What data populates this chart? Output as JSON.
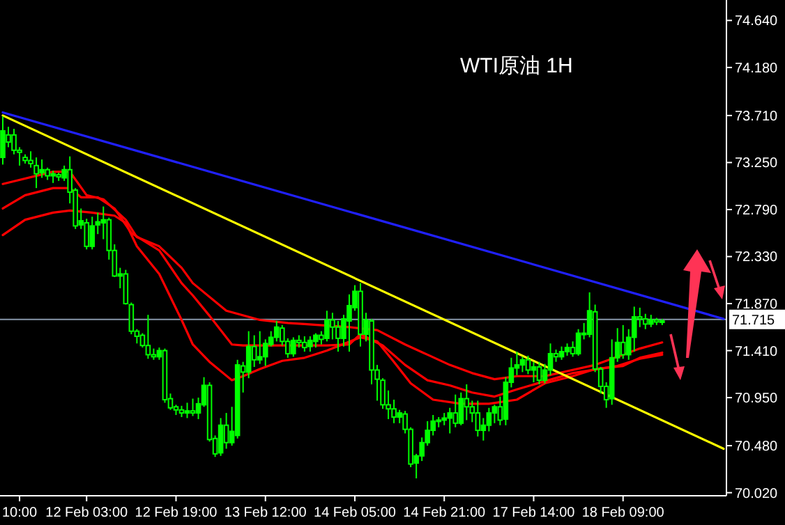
{
  "chart_data": {
    "type": "candlestick",
    "title": "WTI原油 1H",
    "color": "#00ff00",
    "categories": [
      null,
      null,
      null,
      "10:00",
      null,
      null,
      null,
      null,
      null,
      null,
      null,
      null,
      null,
      null,
      null,
      "12 Feb 03:00",
      null,
      null,
      null,
      null,
      null,
      null,
      null,
      null,
      null,
      null,
      null,
      null,
      null,
      null,
      null,
      "12 Feb 19:00",
      null,
      null,
      null,
      null,
      null,
      null,
      null,
      null,
      null,
      null,
      null,
      null,
      null,
      null,
      null,
      "13 Feb 12:00",
      null,
      null,
      null,
      null,
      null,
      null,
      null,
      null,
      null,
      null,
      null,
      null,
      null,
      null,
      null,
      "14 Feb 05:00",
      null,
      null,
      null,
      null,
      null,
      null,
      null,
      null,
      null,
      null,
      null,
      null,
      null,
      null,
      null,
      "14 Feb 21:00",
      null,
      null,
      null,
      null,
      null,
      null,
      null,
      null,
      null,
      null,
      null,
      null,
      null,
      null,
      null,
      "17 Feb 14:00",
      null,
      null,
      null,
      null,
      null,
      null,
      null,
      null,
      null,
      null,
      null,
      null,
      null,
      null,
      null,
      "18 Feb 09:00",
      null,
      null,
      null,
      null,
      null,
      null,
      null,
      null,
      null,
      null,
      null,
      null,
      null,
      null,
      null,
      null,
      null,
      null
    ],
    "ohlc": [
      [
        73.3,
        73.7,
        73.23,
        73.56
      ],
      [
        73.52,
        73.6,
        73.4,
        73.45
      ],
      [
        73.52,
        73.58,
        73.33,
        73.37
      ],
      [
        73.37,
        73.4,
        73.22,
        73.35
      ],
      [
        73.3,
        73.33,
        73.24,
        73.27
      ],
      [
        73.27,
        73.36,
        73.2,
        73.24
      ],
      [
        73.22,
        73.3,
        73.0,
        73.14
      ],
      [
        73.15,
        73.28,
        73.1,
        73.18
      ],
      [
        73.18,
        73.2,
        73.08,
        73.12
      ],
      [
        73.12,
        73.17,
        73.05,
        73.14
      ],
      [
        73.13,
        73.15,
        73.07,
        73.11
      ],
      [
        73.1,
        73.22,
        73.07,
        73.18
      ],
      [
        73.18,
        73.31,
        72.85,
        72.96
      ],
      [
        72.98,
        73.0,
        72.6,
        72.63
      ],
      [
        72.64,
        72.8,
        72.6,
        72.68
      ],
      [
        72.66,
        72.7,
        72.4,
        72.43
      ],
      [
        72.43,
        72.72,
        72.4,
        72.63
      ],
      [
        72.64,
        72.76,
        72.55,
        72.67
      ],
      [
        72.66,
        72.82,
        72.5,
        72.69
      ],
      [
        72.69,
        72.71,
        72.3,
        72.39
      ],
      [
        72.39,
        72.45,
        72.13,
        72.14
      ],
      [
        72.14,
        72.22,
        72.02,
        72.16
      ],
      [
        72.16,
        72.2,
        71.86,
        71.87
      ],
      [
        71.86,
        71.88,
        71.57,
        71.6
      ],
      [
        71.6,
        71.62,
        71.48,
        71.55
      ],
      [
        71.56,
        71.58,
        71.44,
        71.46
      ],
      [
        71.46,
        71.76,
        71.33,
        71.37
      ],
      [
        71.37,
        71.43,
        71.32,
        71.35
      ],
      [
        71.35,
        71.44,
        71.32,
        71.41
      ],
      [
        71.41,
        71.43,
        70.9,
        70.93
      ],
      [
        70.94,
        70.99,
        70.83,
        70.85
      ],
      [
        70.86,
        70.88,
        70.78,
        70.83
      ],
      [
        70.83,
        70.87,
        70.76,
        70.8
      ],
      [
        70.8,
        70.9,
        70.75,
        70.82
      ],
      [
        70.82,
        70.94,
        70.77,
        70.8
      ],
      [
        70.8,
        70.95,
        70.74,
        70.89
      ],
      [
        70.88,
        71.15,
        70.86,
        71.07
      ],
      [
        71.07,
        71.1,
        70.52,
        70.54
      ],
      [
        70.55,
        70.58,
        70.37,
        70.4
      ],
      [
        70.41,
        70.75,
        70.38,
        70.68
      ],
      [
        70.68,
        70.8,
        70.45,
        70.51
      ],
      [
        70.51,
        70.86,
        70.48,
        70.62
      ],
      [
        70.58,
        71.32,
        70.55,
        71.27
      ],
      [
        71.26,
        71.3,
        71.0,
        71.2
      ],
      [
        71.2,
        71.6,
        71.14,
        71.45
      ],
      [
        71.45,
        71.56,
        71.25,
        71.32
      ],
      [
        71.32,
        71.6,
        71.28,
        71.35
      ],
      [
        71.35,
        71.52,
        71.26,
        71.48
      ],
      [
        71.47,
        71.6,
        71.45,
        71.54
      ],
      [
        71.54,
        71.7,
        71.5,
        71.64
      ],
      [
        71.63,
        71.66,
        71.46,
        71.5
      ],
      [
        71.5,
        71.53,
        71.34,
        71.38
      ],
      [
        71.38,
        71.54,
        71.35,
        71.51
      ],
      [
        71.51,
        71.56,
        71.44,
        71.49
      ],
      [
        71.49,
        71.55,
        71.4,
        71.44
      ],
      [
        71.45,
        71.55,
        71.4,
        71.51
      ],
      [
        71.5,
        71.58,
        71.44,
        71.56
      ],
      [
        71.56,
        71.6,
        71.47,
        71.52
      ],
      [
        71.53,
        71.8,
        71.5,
        71.71
      ],
      [
        71.71,
        71.78,
        71.52,
        71.64
      ],
      [
        71.64,
        71.7,
        71.4,
        71.53
      ],
      [
        71.53,
        71.76,
        71.45,
        71.72
      ],
      [
        71.7,
        71.96,
        71.4,
        71.85
      ],
      [
        71.83,
        72.05,
        71.8,
        71.99
      ],
      [
        71.99,
        72.07,
        71.45,
        71.57
      ],
      [
        71.57,
        71.78,
        71.5,
        71.71
      ],
      [
        71.7,
        71.72,
        71.08,
        71.22
      ],
      [
        71.22,
        71.27,
        70.92,
        71.13
      ],
      [
        71.12,
        71.14,
        70.84,
        70.88
      ],
      [
        70.88,
        71.02,
        70.74,
        70.84
      ],
      [
        70.84,
        70.93,
        70.7,
        70.76
      ],
      [
        70.76,
        70.83,
        70.7,
        70.8
      ],
      [
        70.79,
        70.82,
        70.6,
        70.64
      ],
      [
        70.64,
        70.66,
        70.27,
        70.3
      ],
      [
        70.31,
        70.4,
        70.16,
        70.38
      ],
      [
        70.38,
        70.56,
        70.33,
        70.51
      ],
      [
        70.51,
        70.72,
        70.48,
        70.63
      ],
      [
        70.63,
        70.78,
        70.58,
        70.72
      ],
      [
        70.72,
        70.76,
        70.66,
        70.73
      ],
      [
        70.73,
        70.8,
        70.68,
        70.75
      ],
      [
        70.75,
        70.85,
        70.6,
        70.8
      ],
      [
        70.8,
        70.98,
        70.66,
        70.7
      ],
      [
        70.7,
        71.0,
        70.68,
        70.94
      ],
      [
        70.94,
        71.08,
        70.73,
        70.86
      ],
      [
        70.86,
        70.92,
        70.71,
        70.8
      ],
      [
        70.8,
        70.92,
        70.57,
        70.63
      ],
      [
        70.63,
        70.75,
        70.53,
        70.68
      ],
      [
        70.68,
        70.85,
        70.62,
        70.8
      ],
      [
        70.8,
        70.88,
        70.7,
        70.86
      ],
      [
        70.86,
        70.96,
        70.68,
        70.73
      ],
      [
        70.74,
        71.15,
        70.68,
        71.1
      ],
      [
        71.1,
        71.34,
        71.05,
        71.24
      ],
      [
        71.24,
        71.4,
        71.17,
        71.27
      ],
      [
        71.27,
        71.35,
        71.2,
        71.32
      ],
      [
        71.32,
        71.36,
        71.18,
        71.22
      ],
      [
        71.22,
        71.3,
        71.1,
        71.25
      ],
      [
        71.25,
        71.3,
        71.08,
        71.12
      ],
      [
        71.12,
        71.28,
        71.09,
        71.22
      ],
      [
        71.22,
        71.48,
        71.17,
        71.38
      ],
      [
        71.38,
        71.42,
        71.3,
        71.35
      ],
      [
        71.35,
        71.45,
        71.32,
        71.4
      ],
      [
        71.4,
        71.48,
        71.36,
        71.44
      ],
      [
        71.44,
        71.5,
        71.35,
        71.38
      ],
      [
        71.38,
        71.62,
        71.36,
        71.58
      ],
      [
        71.58,
        71.68,
        71.52,
        71.57
      ],
      [
        71.57,
        71.98,
        71.54,
        71.8
      ],
      [
        71.79,
        71.86,
        71.2,
        71.23
      ],
      [
        71.23,
        71.25,
        70.99,
        71.06
      ],
      [
        71.06,
        71.1,
        70.85,
        70.93
      ],
      [
        70.94,
        71.52,
        70.88,
        71.34
      ],
      [
        71.34,
        71.63,
        71.3,
        71.49
      ],
      [
        71.49,
        71.66,
        71.33,
        71.37
      ],
      [
        71.37,
        71.62,
        71.32,
        71.54
      ],
      [
        71.54,
        71.84,
        71.4,
        71.74
      ],
      [
        71.74,
        71.83,
        71.64,
        71.72
      ],
      [
        71.72,
        71.77,
        71.62,
        71.67
      ],
      [
        71.67,
        71.76,
        71.64,
        71.71
      ],
      [
        71.71,
        71.73,
        71.66,
        71.69
      ],
      [
        71.69,
        71.72,
        71.66,
        71.7
      ],
      null,
      null,
      null,
      null,
      null,
      null,
      null,
      null,
      null,
      null,
      null
    ],
    "series": [
      {
        "type": "line",
        "color": "#ff0000",
        "values": [
          72.54,
          null,
          null,
          null,
          72.69,
          null,
          null,
          null,
          null,
          72.76,
          null,
          null,
          72.78,
          null,
          null,
          null,
          72.76,
          null,
          null,
          null,
          72.73,
          null,
          72.66,
          null,
          72.43,
          null,
          null,
          null,
          72.16,
          null,
          null,
          null,
          71.71,
          null,
          71.47,
          null,
          null,
          71.3,
          null,
          null,
          null,
          71.12,
          null,
          71.16,
          null,
          null,
          71.23,
          null,
          null,
          null,
          71.31,
          null,
          null,
          null,
          71.34,
          null,
          null,
          null,
          71.41,
          null,
          null,
          null,
          null,
          null,
          71.54,
          null,
          null,
          71.5,
          null,
          null,
          71.3,
          null,
          null,
          71.09,
          null,
          null,
          null,
          70.93,
          null,
          null,
          null,
          null,
          70.89,
          null,
          null,
          null,
          null,
          70.89,
          null,
          null,
          null,
          null,
          70.93,
          null,
          null,
          null,
          null,
          71.09,
          null,
          null,
          null,
          null,
          71.16,
          null,
          null,
          null,
          71.23,
          null,
          null,
          null,
          null,
          71.26,
          null,
          null,
          71.34,
          null,
          null,
          null,
          71.39,
          null,
          null,
          null,
          null,
          null,
          null,
          null,
          null,
          null,
          null,
          null
        ]
      },
      {
        "type": "line",
        "color": "#ff0000",
        "values": [
          72.8,
          null,
          null,
          null,
          72.93,
          null,
          null,
          null,
          null,
          73.0,
          null,
          null,
          73.0,
          null,
          72.91,
          null,
          null,
          72.91,
          null,
          null,
          72.8,
          null,
          null,
          72.56,
          null,
          null,
          null,
          null,
          72.39,
          null,
          null,
          null,
          72.07,
          null,
          71.95,
          null,
          null,
          71.75,
          null,
          null,
          null,
          71.47,
          null,
          71.46,
          null,
          null,
          null,
          71.46,
          null,
          null,
          null,
          null,
          null,
          null,
          71.46,
          null,
          null,
          null,
          71.46,
          null,
          null,
          null,
          71.47,
          null,
          71.57,
          null,
          null,
          null,
          71.46,
          null,
          null,
          null,
          71.27,
          null,
          null,
          null,
          71.12,
          null,
          null,
          null,
          71.07,
          null,
          null,
          null,
          71.0,
          null,
          null,
          null,
          70.96,
          null,
          null,
          null,
          71.03,
          null,
          null,
          null,
          null,
          null,
          null,
          null,
          null,
          null,
          71.19,
          null,
          null,
          null,
          null,
          null,
          null,
          null,
          71.26,
          null,
          null,
          null,
          71.33,
          null,
          null,
          null,
          71.37,
          null,
          null,
          null,
          null,
          null,
          null,
          null,
          null,
          null,
          null,
          null
        ]
      },
      {
        "type": "line",
        "color": "#ff0000",
        "values": [
          73.04,
          null,
          null,
          null,
          null,
          null,
          null,
          null,
          null,
          73.16,
          null,
          null,
          73.16,
          null,
          null,
          72.93,
          null,
          null,
          72.89,
          null,
          null,
          null,
          72.69,
          null,
          72.52,
          null,
          null,
          null,
          72.43,
          null,
          null,
          null,
          72.22,
          null,
          72.07,
          null,
          null,
          null,
          null,
          null,
          71.8,
          null,
          null,
          null,
          null,
          null,
          71.71,
          null,
          null,
          null,
          null,
          71.68,
          null,
          null,
          71.67,
          null,
          null,
          null,
          null,
          null,
          null,
          null,
          71.64,
          null,
          null,
          null,
          null,
          71.61,
          null,
          null,
          null,
          null,
          71.47,
          null,
          null,
          null,
          71.37,
          null,
          null,
          null,
          71.27,
          null,
          null,
          null,
          71.19,
          null,
          null,
          null,
          71.13,
          null,
          null,
          null,
          71.16,
          null,
          null,
          null,
          null,
          71.16,
          null,
          null,
          null,
          null,
          null,
          null,
          null,
          null,
          71.27,
          null,
          null,
          null,
          null,
          null,
          null,
          null,
          71.43,
          null,
          null,
          null,
          71.49,
          null,
          null,
          null,
          null,
          null,
          null,
          null,
          null,
          null,
          null,
          null
        ]
      },
      {
        "type": "line",
        "color": "#2020ff",
        "values": [
          73.74,
          null,
          null,
          null,
          null,
          null,
          null,
          null,
          null,
          null,
          null,
          null,
          null,
          null,
          null,
          null,
          null,
          null,
          null,
          null,
          null,
          null,
          null,
          null,
          null,
          null,
          null,
          null,
          null,
          null,
          null,
          null,
          null,
          null,
          null,
          null,
          null,
          null,
          null,
          null,
          null,
          null,
          null,
          null,
          null,
          null,
          null,
          null,
          null,
          null,
          null,
          null,
          null,
          null,
          null,
          null,
          null,
          null,
          null,
          null,
          null,
          null,
          null,
          null,
          null,
          null,
          null,
          null,
          null,
          null,
          null,
          null,
          null,
          null,
          null,
          null,
          null,
          null,
          null,
          null,
          null,
          null,
          null,
          null,
          null,
          null,
          null,
          null,
          null,
          null,
          null,
          null,
          null,
          null,
          null,
          null,
          null,
          null,
          null,
          null,
          null,
          null,
          null,
          null,
          null,
          null,
          null,
          null,
          null,
          null,
          null,
          null,
          null,
          null,
          null,
          null,
          null,
          null,
          null,
          null,
          null,
          null,
          null,
          null,
          null,
          null,
          null,
          null,
          null,
          71.72
        ]
      },
      {
        "type": "line",
        "color": "#ffff00",
        "values": [
          73.71,
          null,
          null,
          null,
          null,
          null,
          null,
          null,
          null,
          null,
          null,
          null,
          null,
          null,
          null,
          null,
          null,
          null,
          null,
          null,
          null,
          null,
          null,
          null,
          null,
          null,
          null,
          null,
          null,
          null,
          null,
          null,
          null,
          null,
          null,
          null,
          null,
          null,
          null,
          null,
          null,
          null,
          null,
          null,
          null,
          null,
          null,
          null,
          null,
          null,
          null,
          null,
          null,
          null,
          null,
          null,
          null,
          null,
          null,
          null,
          null,
          null,
          null,
          null,
          null,
          null,
          null,
          null,
          null,
          null,
          null,
          null,
          null,
          null,
          null,
          null,
          null,
          null,
          null,
          null,
          null,
          null,
          null,
          null,
          null,
          null,
          null,
          null,
          null,
          null,
          null,
          null,
          null,
          null,
          null,
          null,
          null,
          null,
          null,
          null,
          null,
          null,
          null,
          null,
          null,
          null,
          null,
          null,
          null,
          null,
          null,
          null,
          null,
          null,
          null,
          null,
          null,
          null,
          null,
          null,
          null,
          null,
          null,
          null,
          null,
          null,
          null,
          null,
          null,
          70.45
        ]
      }
    ],
    "ylim": [
      69.99,
      74.84
    ],
    "yticks": [
      {
        "value": 70.02,
        "label": "70.020"
      },
      {
        "value": 70.48,
        "label": "70.480"
      },
      {
        "value": 70.95,
        "label": "70.950"
      },
      {
        "value": 71.41,
        "label": "71.410"
      },
      {
        "value": 71.87,
        "label": "71.870"
      },
      {
        "value": 72.33,
        "label": "72.330"
      },
      {
        "value": 72.79,
        "label": "72.790"
      },
      {
        "value": 73.25,
        "label": "73.250"
      },
      {
        "value": 73.71,
        "label": "73.710"
      },
      {
        "value": 74.18,
        "label": "74.180"
      },
      {
        "value": 74.64,
        "label": "74.640"
      }
    ],
    "ref_lines": [
      {
        "axis": "y",
        "value": 71.715,
        "label": "71.715",
        "color": "#8797aa"
      }
    ]
  }
}
